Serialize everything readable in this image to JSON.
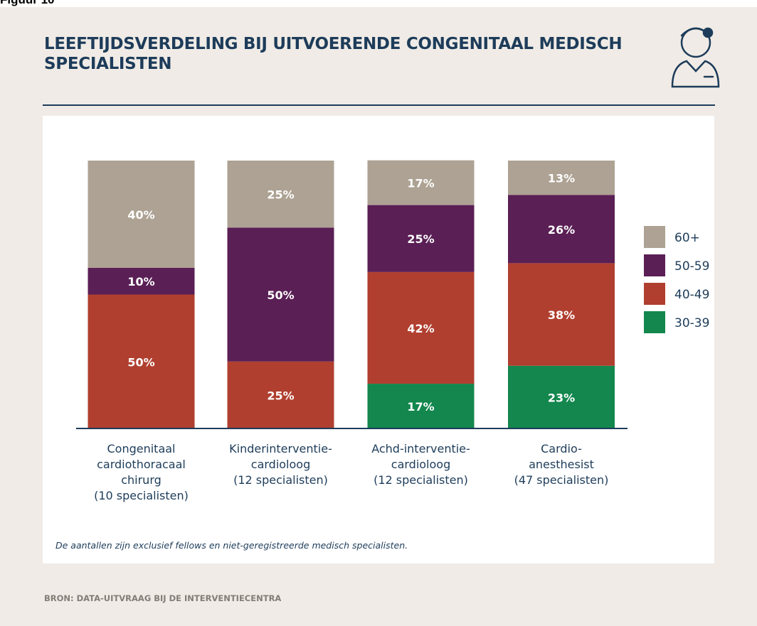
{
  "figure_label": "Figuur 10",
  "source": "BRON: DATA-UITVRAAG BIJ DE INTERVENTIECENTRA",
  "chart_data": {
    "type": "bar",
    "stacked": true,
    "title": "LEEFTIJDSVERDELING BIJ UITVOERENDE CONGENITAAL MEDISCH SPECIALISTEN",
    "note": "De aantallen zijn exclusief fellows en niet-geregistreerde medisch specialisten.",
    "categories": [
      "Congenitaal\ncardiothoracaal\nchirurg\n(10 specialisten)",
      "Kinderinterventie-\ncardioloog\n(12 specialisten)",
      "Achd-interventie-\ncardioloog\n(12 specialisten)",
      "Cardio-\nanesthesist\n(47 specialisten)"
    ],
    "series": [
      {
        "name": "30-39",
        "color": "#13874d",
        "values": [
          null,
          null,
          16.7,
          23.4
        ],
        "value_labels": [
          null,
          null,
          "17%",
          "23%"
        ]
      },
      {
        "name": "40-49",
        "color": "#b03f2f",
        "values": [
          50,
          25,
          41.7,
          38.3
        ],
        "value_labels": [
          "50%",
          "25%",
          "42%",
          "38%"
        ]
      },
      {
        "name": "50-59",
        "color": "#5a1f55",
        "values": [
          10,
          50,
          25,
          25.5
        ],
        "value_labels": [
          "10%",
          "50%",
          "25%",
          "26%"
        ]
      },
      {
        "name": "60+",
        "color": "#ada293",
        "values": [
          40,
          25,
          16.7,
          12.8
        ],
        "value_labels": [
          "40%",
          "25%",
          "17%",
          "13%"
        ]
      }
    ],
    "ylim": [
      0,
      100
    ],
    "legend": "right"
  }
}
